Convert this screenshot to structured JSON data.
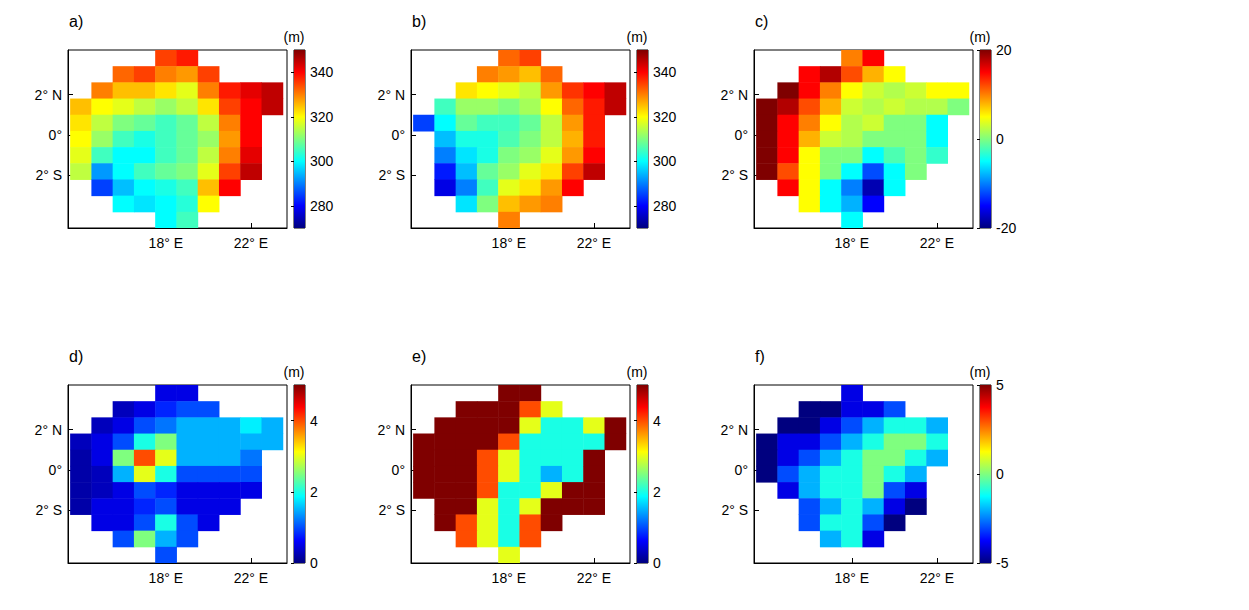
{
  "chart_data": [
    {
      "type": "heatmap",
      "title": "a)",
      "xlim": [
        13.4,
        23.7
      ],
      "ylim": [
        -4.6,
        4.2
      ],
      "xticks": [
        {
          "value": 18,
          "label": "18° E"
        },
        {
          "value": 22,
          "label": "22° E"
        }
      ],
      "yticks": [
        {
          "value": 2,
          "label": "2° N"
        },
        {
          "value": 0,
          "label": "0°"
        },
        {
          "value": -2,
          "label": "2° S"
        }
      ],
      "x": [
        14,
        15,
        16,
        17,
        18,
        19,
        20,
        21,
        22,
        23
      ],
      "y": [
        3.8,
        3.0,
        2.2,
        1.4,
        0.6,
        -0.2,
        -1.0,
        -1.8,
        -2.6,
        -3.4,
        -4.2
      ],
      "values": [
        [
          null,
          null,
          null,
          null,
          335,
          338,
          null,
          null,
          null,
          null
        ],
        [
          null,
          null,
          332,
          335,
          330,
          328,
          335,
          null,
          null,
          null
        ],
        [
          null,
          330,
          325,
          325,
          322,
          318,
          330,
          338,
          342,
          345
        ],
        [
          325,
          320,
          318,
          315,
          312,
          315,
          322,
          335,
          340,
          345
        ],
        [
          322,
          315,
          310,
          308,
          305,
          308,
          315,
          330,
          340,
          null
        ],
        [
          320,
          312,
          305,
          302,
          305,
          308,
          312,
          328,
          340,
          null
        ],
        [
          318,
          305,
          300,
          300,
          305,
          308,
          315,
          330,
          342,
          null
        ],
        [
          315,
          292,
          300,
          305,
          308,
          310,
          318,
          335,
          345,
          null
        ],
        [
          null,
          285,
          295,
          300,
          302,
          305,
          325,
          340,
          null,
          null
        ],
        [
          null,
          null,
          300,
          298,
          300,
          303,
          320,
          null,
          null,
          null
        ],
        [
          null,
          null,
          null,
          null,
          300,
          305,
          null,
          null,
          null,
          null
        ]
      ],
      "colorbar": {
        "label": "(m)",
        "range": [
          270,
          350
        ],
        "ticks": [
          280,
          300,
          320,
          340
        ]
      }
    },
    {
      "type": "heatmap",
      "title": "b)",
      "xlim": [
        13.4,
        23.7
      ],
      "ylim": [
        -4.6,
        4.2
      ],
      "xticks": [
        {
          "value": 18,
          "label": "18° E"
        },
        {
          "value": 22,
          "label": "22° E"
        }
      ],
      "yticks": [
        {
          "value": 2,
          "label": "2° N"
        },
        {
          "value": 0,
          "label": "0°"
        },
        {
          "value": -2,
          "label": "2° S"
        }
      ],
      "x": [
        14,
        15,
        16,
        17,
        18,
        19,
        20,
        21,
        22,
        23
      ],
      "y": [
        3.8,
        3.0,
        2.2,
        1.4,
        0.6,
        -0.2,
        -1.0,
        -1.8,
        -2.6,
        -3.4,
        -4.2
      ],
      "values": [
        [
          null,
          null,
          null,
          null,
          332,
          335,
          null,
          null,
          null,
          null
        ],
        [
          null,
          null,
          null,
          330,
          328,
          325,
          332,
          null,
          null,
          null
        ],
        [
          null,
          null,
          322,
          320,
          318,
          315,
          328,
          336,
          340,
          345
        ],
        [
          null,
          305,
          312,
          312,
          310,
          313,
          320,
          332,
          338,
          345
        ],
        [
          285,
          300,
          308,
          305,
          305,
          308,
          315,
          328,
          338,
          null
        ],
        [
          null,
          295,
          302,
          302,
          306,
          310,
          315,
          326,
          338,
          null
        ],
        [
          null,
          290,
          298,
          302,
          310,
          312,
          318,
          328,
          340,
          null
        ],
        [
          null,
          282,
          295,
          308,
          312,
          318,
          322,
          335,
          345,
          null
        ],
        [
          null,
          278,
          290,
          305,
          318,
          322,
          328,
          340,
          null,
          null
        ],
        [
          null,
          null,
          298,
          310,
          325,
          328,
          330,
          null,
          null,
          null
        ],
        [
          null,
          null,
          null,
          null,
          330,
          null,
          null,
          null,
          null,
          null
        ]
      ],
      "colorbar": {
        "label": "(m)",
        "range": [
          270,
          350
        ],
        "ticks": [
          280,
          300,
          320,
          340
        ]
      }
    },
    {
      "type": "heatmap",
      "title": "c)",
      "xlim": [
        13.4,
        23.7
      ],
      "ylim": [
        -4.6,
        4.2
      ],
      "xticks": [
        {
          "value": 18,
          "label": "18° E"
        },
        {
          "value": 22,
          "label": "22° E"
        }
      ],
      "yticks": [
        {
          "value": 2,
          "label": "2° N"
        },
        {
          "value": 0,
          "label": "0°"
        },
        {
          "value": -2,
          "label": "2° S"
        }
      ],
      "x": [
        14,
        15,
        16,
        17,
        18,
        19,
        20,
        21,
        22,
        23
      ],
      "y": [
        3.8,
        3.0,
        2.2,
        1.4,
        0.6,
        -0.2,
        -1.0,
        -1.8,
        -2.6,
        -3.4,
        -4.2
      ],
      "values": [
        [
          null,
          null,
          null,
          null,
          10,
          15,
          null,
          null,
          null,
          null
        ],
        [
          null,
          null,
          15,
          18,
          12,
          8,
          5,
          null,
          null,
          null
        ],
        [
          null,
          20,
          15,
          10,
          5,
          3,
          2,
          3,
          5,
          5
        ],
        [
          20,
          18,
          12,
          8,
          3,
          2,
          3,
          2,
          2,
          0
        ],
        [
          20,
          15,
          10,
          5,
          2,
          3,
          0,
          0,
          -5,
          null
        ],
        [
          20,
          15,
          8,
          3,
          2,
          0,
          0,
          0,
          -5,
          null
        ],
        [
          20,
          15,
          5,
          0,
          0,
          -5,
          -2,
          0,
          -3,
          null
        ],
        [
          20,
          12,
          5,
          0,
          -5,
          -12,
          -5,
          0,
          null,
          null
        ],
        [
          null,
          15,
          5,
          -5,
          -10,
          -18,
          -5,
          null,
          null,
          null
        ],
        [
          null,
          null,
          5,
          -5,
          -8,
          -15,
          null,
          null,
          null,
          null
        ],
        [
          null,
          null,
          null,
          null,
          -5,
          null,
          null,
          null,
          null,
          null
        ]
      ],
      "colorbar": {
        "label": "(m)",
        "range": [
          -20,
          20
        ],
        "ticks": [
          -20,
          0,
          20
        ]
      }
    },
    {
      "type": "heatmap",
      "title": "d)",
      "xlim": [
        13.4,
        23.7
      ],
      "ylim": [
        -4.6,
        4.2
      ],
      "xticks": [
        {
          "value": 18,
          "label": "18° E"
        },
        {
          "value": 22,
          "label": "22° E"
        }
      ],
      "yticks": [
        {
          "value": 2,
          "label": "2° N"
        },
        {
          "value": 0,
          "label": "0°"
        },
        {
          "value": -2,
          "label": "2° S"
        }
      ],
      "x": [
        14,
        15,
        16,
        17,
        18,
        19,
        20,
        21,
        22,
        23
      ],
      "y": [
        3.8,
        3.0,
        2.2,
        1.4,
        0.6,
        -0.2,
        -1.0,
        -1.8,
        -2.6,
        -3.4,
        -4.2
      ],
      "values": [
        [
          null,
          null,
          null,
          null,
          0.5,
          0.5,
          null,
          null,
          null,
          null
        ],
        [
          null,
          null,
          0.3,
          0.5,
          0.8,
          1,
          1,
          null,
          null,
          null
        ],
        [
          null,
          0.3,
          0.5,
          1,
          1.2,
          1.5,
          1.5,
          1.5,
          1.8,
          1.5
        ],
        [
          0.3,
          0.5,
          1,
          2,
          2.5,
          1.5,
          1.5,
          1.5,
          1.5,
          1.5
        ],
        [
          0.2,
          0.5,
          2.5,
          4,
          3,
          1.5,
          1.5,
          1.5,
          1.2,
          null
        ],
        [
          0.2,
          0.3,
          1.5,
          3,
          2,
          1,
          1,
          1,
          1,
          null
        ],
        [
          0.2,
          0.3,
          0.5,
          1,
          0.8,
          0.5,
          0.5,
          0.5,
          0.5,
          null
        ],
        [
          0.2,
          0.5,
          0.5,
          0.8,
          1,
          0.5,
          0.5,
          0.5,
          null,
          null
        ],
        [
          null,
          0.5,
          0.5,
          1,
          2,
          1,
          0.5,
          null,
          null,
          null
        ],
        [
          null,
          null,
          1,
          2.5,
          1.5,
          1,
          null,
          null,
          null,
          null
        ],
        [
          null,
          null,
          null,
          null,
          1,
          null,
          null,
          null,
          null,
          null
        ]
      ],
      "colorbar": {
        "label": "(m)",
        "range": [
          0,
          5
        ],
        "ticks": [
          0,
          2,
          4
        ]
      }
    },
    {
      "type": "heatmap",
      "title": "e)",
      "xlim": [
        13.4,
        23.7
      ],
      "ylim": [
        -4.6,
        4.2
      ],
      "xticks": [
        {
          "value": 18,
          "label": "18° E"
        },
        {
          "value": 22,
          "label": "22° E"
        }
      ],
      "yticks": [
        {
          "value": 2,
          "label": "2° N"
        },
        {
          "value": 0,
          "label": "0°"
        },
        {
          "value": -2,
          "label": "2° S"
        }
      ],
      "x": [
        14,
        15,
        16,
        17,
        18,
        19,
        20,
        21,
        22,
        23
      ],
      "y": [
        3.8,
        3.0,
        2.2,
        1.4,
        0.6,
        -0.2,
        -1.0,
        -1.8,
        -2.6,
        -3.4,
        -4.2
      ],
      "values": [
        [
          null,
          null,
          null,
          null,
          5,
          5,
          null,
          null,
          null,
          null
        ],
        [
          null,
          null,
          5,
          5,
          5,
          4,
          3,
          null,
          null,
          null
        ],
        [
          null,
          5,
          5,
          5,
          5,
          3,
          2,
          2,
          3,
          5
        ],
        [
          5,
          5,
          5,
          5,
          4,
          2,
          2,
          2,
          2,
          5
        ],
        [
          5,
          5,
          5,
          4,
          3,
          2,
          2,
          2,
          5,
          null
        ],
        [
          5,
          5,
          5,
          4,
          3,
          2,
          1.5,
          2,
          5,
          null
        ],
        [
          5,
          5,
          5,
          4,
          2,
          2,
          3,
          5,
          5,
          null
        ],
        [
          null,
          5,
          5,
          3,
          2,
          3,
          5,
          5,
          5,
          null
        ],
        [
          null,
          5,
          4,
          3,
          2,
          4,
          5,
          null,
          null,
          null
        ],
        [
          null,
          null,
          4,
          3,
          2,
          4,
          null,
          null,
          null,
          null
        ],
        [
          null,
          null,
          null,
          null,
          3,
          null,
          null,
          null,
          null,
          null
        ]
      ],
      "colorbar": {
        "label": "(m)",
        "range": [
          0,
          5
        ],
        "ticks": [
          0,
          2,
          4
        ]
      }
    },
    {
      "type": "heatmap",
      "title": "f)",
      "xlim": [
        13.4,
        23.7
      ],
      "ylim": [
        -4.6,
        4.2
      ],
      "xticks": [
        {
          "value": 18,
          "label": "18° E"
        },
        {
          "value": 22,
          "label": "22° E"
        }
      ],
      "yticks": [
        {
          "value": 2,
          "label": "2° N"
        },
        {
          "value": 0,
          "label": "0°"
        },
        {
          "value": -2,
          "label": "2° S"
        }
      ],
      "x": [
        14,
        15,
        16,
        17,
        18,
        19,
        20,
        21,
        22,
        23
      ],
      "y": [
        3.8,
        3.0,
        2.2,
        1.4,
        0.6,
        -0.2,
        -1.0,
        -1.8,
        -2.6,
        -3.4,
        -4.2
      ],
      "values": [
        [
          null,
          null,
          null,
          null,
          -4,
          null,
          null,
          null,
          null,
          null
        ],
        [
          null,
          null,
          -5,
          -5,
          -4,
          -4,
          -3,
          null,
          null,
          null
        ],
        [
          null,
          -5,
          -5,
          -4,
          -3,
          -2,
          -1,
          -1,
          -2,
          null
        ],
        [
          -5,
          -4,
          -4,
          -3,
          -2,
          -1,
          0,
          0,
          -1,
          null
        ],
        [
          -5,
          -4,
          -3,
          -2,
          -1,
          0,
          0,
          -1,
          -2,
          null
        ],
        [
          -5,
          -3,
          -2,
          -1,
          -1,
          0,
          -1,
          -2,
          null,
          null
        ],
        [
          null,
          -4,
          -2,
          -1,
          -1,
          0,
          -3,
          -4,
          null,
          null
        ],
        [
          null,
          null,
          -3,
          -2,
          -1,
          -2,
          -4,
          -5,
          null,
          null
        ],
        [
          null,
          null,
          -3,
          -1,
          -1,
          -3,
          -5,
          null,
          null,
          null
        ],
        [
          null,
          null,
          null,
          -2,
          -1,
          -4,
          null,
          null,
          null,
          null
        ],
        [
          null,
          null,
          null,
          null,
          null,
          null,
          null,
          null,
          null,
          null
        ]
      ],
      "colorbar": {
        "label": "(m)",
        "range": [
          -5,
          5
        ],
        "ticks": [
          -5,
          0,
          5
        ]
      }
    }
  ]
}
